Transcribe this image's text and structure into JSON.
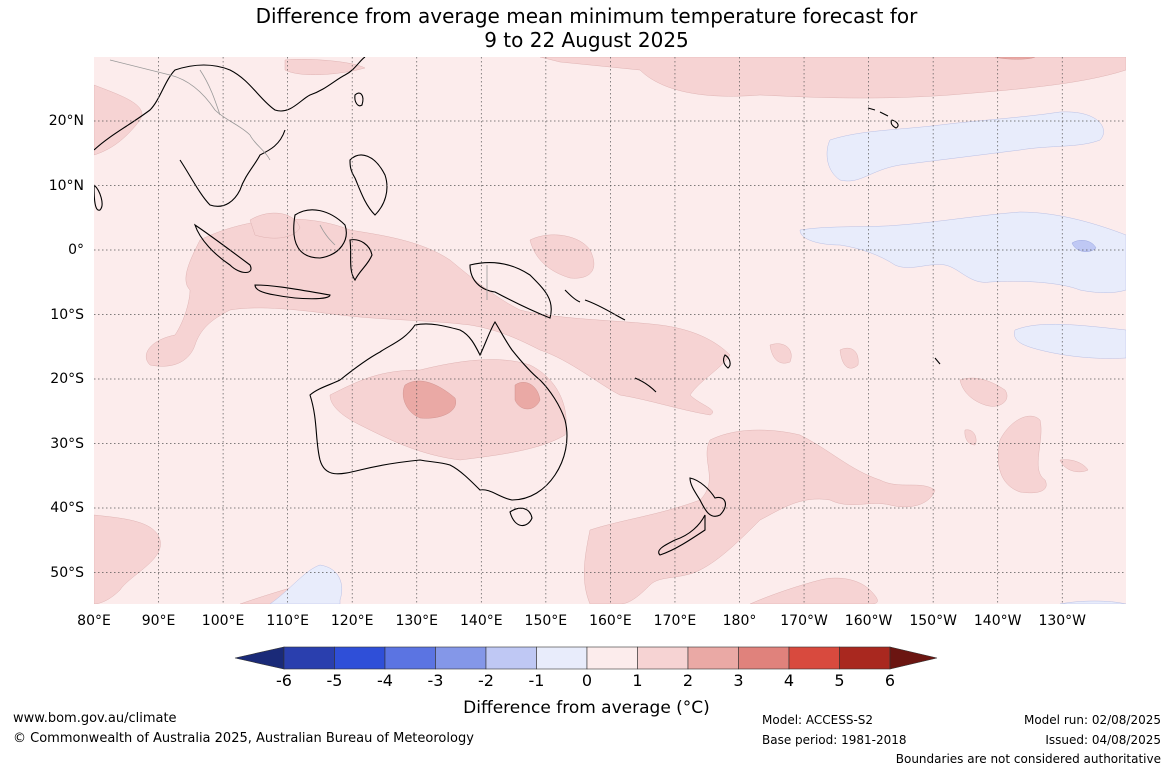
{
  "title": {
    "line1": "Difference from average mean minimum temperature forecast for",
    "line2": "9 to 22 August 2025"
  },
  "lon_labels": [
    "80°E",
    "90°E",
    "100°E",
    "110°E",
    "120°E",
    "130°E",
    "140°E",
    "150°E",
    "160°E",
    "170°E",
    "180°",
    "170°W",
    "160°W",
    "150°W",
    "140°W",
    "130°W"
  ],
  "lat_labels": [
    "20°N",
    "10°N",
    "0°",
    "10°S",
    "20°S",
    "30°S",
    "40°S",
    "50°S"
  ],
  "colorbar": {
    "ticks": [
      "-6",
      "-5",
      "-4",
      "-3",
      "-2",
      "-1",
      "0",
      "1",
      "2",
      "3",
      "4",
      "5",
      "6"
    ],
    "colors": [
      "#1a2a78",
      "#2a3fae",
      "#2f4fd8",
      "#5b74e2",
      "#8497e8",
      "#bfc8f4",
      "#e8ecfb",
      "#fcecec",
      "#f6d3d3",
      "#eaa9a5",
      "#e0827c",
      "#d84a3e",
      "#a9281f",
      "#6b1511"
    ],
    "title": "Difference from average (°C)"
  },
  "colors": {
    "background_anomaly": "#fcecec",
    "anomaly_1_2": "#f6d3d3",
    "anomaly_2_3": "#eaa9a5",
    "anomaly_neg": "#e8ecfb",
    "anomaly_neg2": "#bfc8f4"
  },
  "footer": {
    "website": "www.bom.gov.au/climate",
    "copyright": "© Commonwealth of Australia 2025, Australian Bureau of Meteorology",
    "model": "Model: ACCESS-S2",
    "base_period": "Base period: 1981-2018",
    "model_run": "Model run: 02/08/2025",
    "issued": "Issued: 04/08/2025",
    "disclaimer": "Boundaries are not considered authoritative"
  }
}
